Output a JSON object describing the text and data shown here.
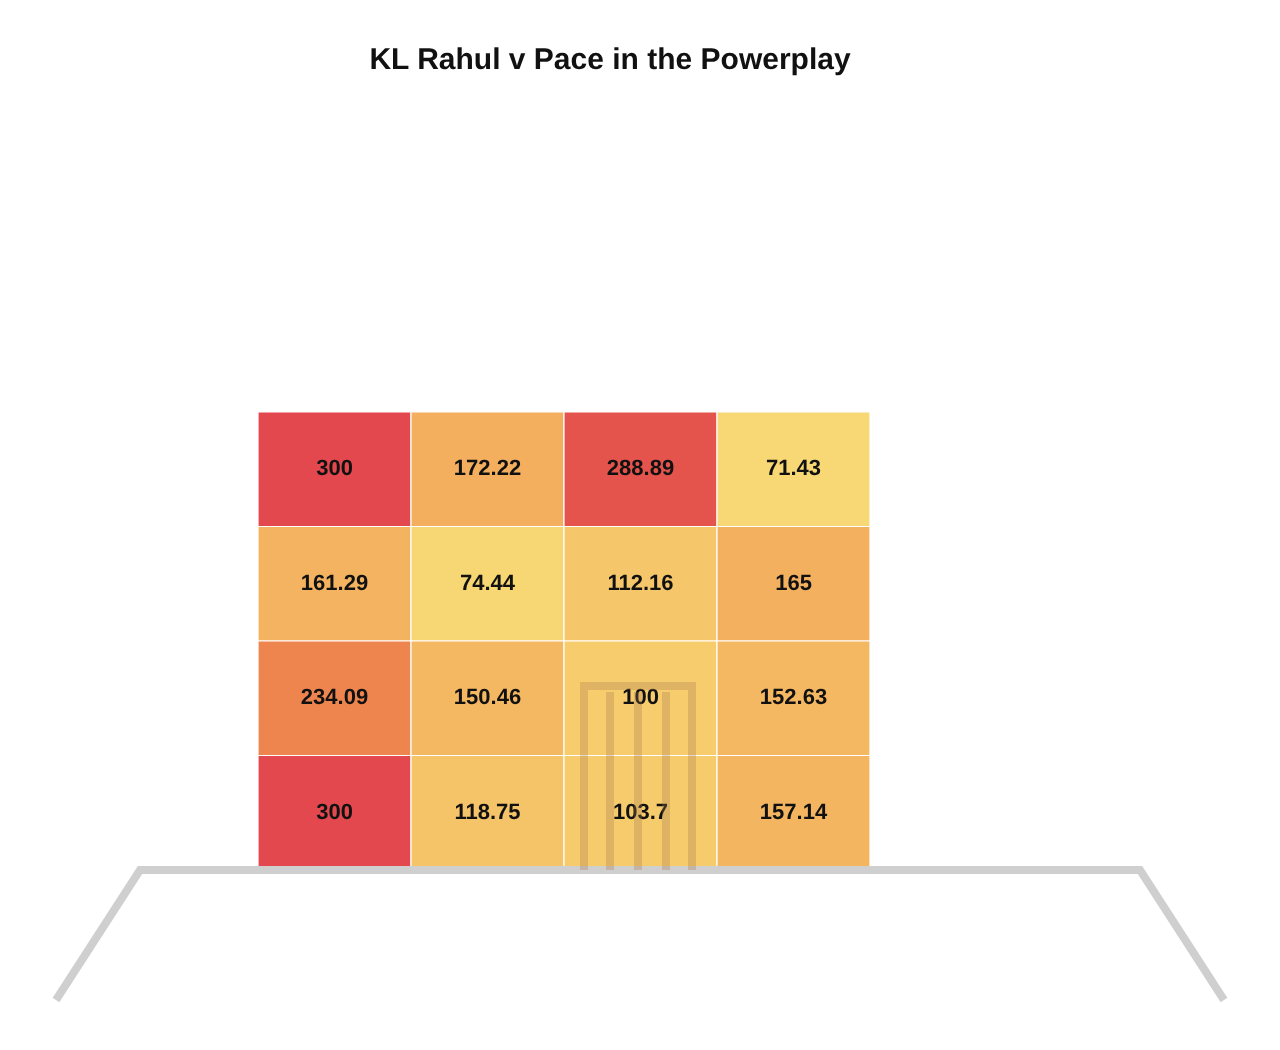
{
  "chart_data": {
    "type": "heatmap",
    "title": "KL Rahul v Pace in the Powerplay",
    "categories": [
      null,
      null,
      null,
      null
    ],
    "y_categories": [
      null,
      null,
      null,
      null
    ],
    "cells": [
      [
        300,
        172.22,
        288.89,
        71.43
      ],
      [
        161.29,
        74.44,
        112.16,
        165
      ],
      [
        234.09,
        150.46,
        100,
        152.63
      ],
      [
        300,
        118.75,
        103.7,
        157.14
      ]
    ],
    "data_labels": true
  }
}
